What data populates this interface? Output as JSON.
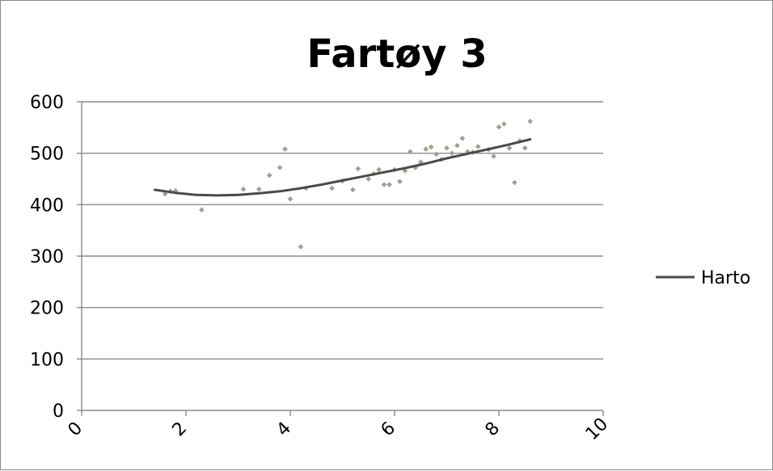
{
  "chart_data": {
    "type": "scatter",
    "title": "Fartøy 3",
    "xlim": [
      0,
      10
    ],
    "ylim": [
      0,
      600
    ],
    "x_ticks": [
      "0",
      "2",
      "4",
      "6",
      "8",
      "10"
    ],
    "y_ticks": [
      "0",
      "100",
      "200",
      "300",
      "400",
      "500",
      "600"
    ],
    "grid": "horizontal",
    "legend_position": "right",
    "colors": {
      "points": "#a89c90",
      "trendline": "#4a4a4a",
      "gridline": "#8c8c8c"
    },
    "series": [
      {
        "name": "Harto",
        "kind": "trendline",
        "points": [
          [
            1.4,
            429
          ],
          [
            1.8,
            423
          ],
          [
            2.2,
            419
          ],
          [
            2.6,
            418
          ],
          [
            3.0,
            419
          ],
          [
            3.4,
            422
          ],
          [
            3.8,
            426
          ],
          [
            4.2,
            432
          ],
          [
            4.6,
            439
          ],
          [
            5.0,
            447
          ],
          [
            5.4,
            455
          ],
          [
            5.8,
            463
          ],
          [
            6.2,
            471
          ],
          [
            6.6,
            480
          ],
          [
            7.0,
            490
          ],
          [
            7.4,
            499
          ],
          [
            7.8,
            508
          ],
          [
            8.2,
            517
          ],
          [
            8.6,
            527
          ]
        ]
      },
      {
        "name": "",
        "kind": "points",
        "points": [
          [
            1.6,
            421
          ],
          [
            1.7,
            426
          ],
          [
            1.8,
            427
          ],
          [
            2.3,
            390
          ],
          [
            3.1,
            430
          ],
          [
            3.4,
            430
          ],
          [
            3.6,
            457
          ],
          [
            3.8,
            472
          ],
          [
            3.9,
            508
          ],
          [
            4.0,
            411
          ],
          [
            4.2,
            318
          ],
          [
            4.3,
            432
          ],
          [
            4.8,
            432
          ],
          [
            5.0,
            446
          ],
          [
            5.2,
            429
          ],
          [
            5.3,
            470
          ],
          [
            5.5,
            450
          ],
          [
            5.6,
            460
          ],
          [
            5.7,
            468
          ],
          [
            5.8,
            439
          ],
          [
            5.9,
            439
          ],
          [
            6.0,
            468
          ],
          [
            6.1,
            445
          ],
          [
            6.2,
            466
          ],
          [
            6.3,
            503
          ],
          [
            6.4,
            472
          ],
          [
            6.5,
            483
          ],
          [
            6.6,
            508
          ],
          [
            6.7,
            512
          ],
          [
            6.8,
            498
          ],
          [
            6.9,
            488
          ],
          [
            7.0,
            510
          ],
          [
            7.1,
            500
          ],
          [
            7.2,
            515
          ],
          [
            7.3,
            529
          ],
          [
            7.4,
            503
          ],
          [
            7.5,
            502
          ],
          [
            7.6,
            513
          ],
          [
            7.8,
            507
          ],
          [
            7.9,
            494
          ],
          [
            8.0,
            551
          ],
          [
            8.1,
            557
          ],
          [
            8.2,
            510
          ],
          [
            8.3,
            443
          ],
          [
            8.4,
            524
          ],
          [
            8.5,
            510
          ],
          [
            8.6,
            562
          ]
        ]
      }
    ]
  }
}
